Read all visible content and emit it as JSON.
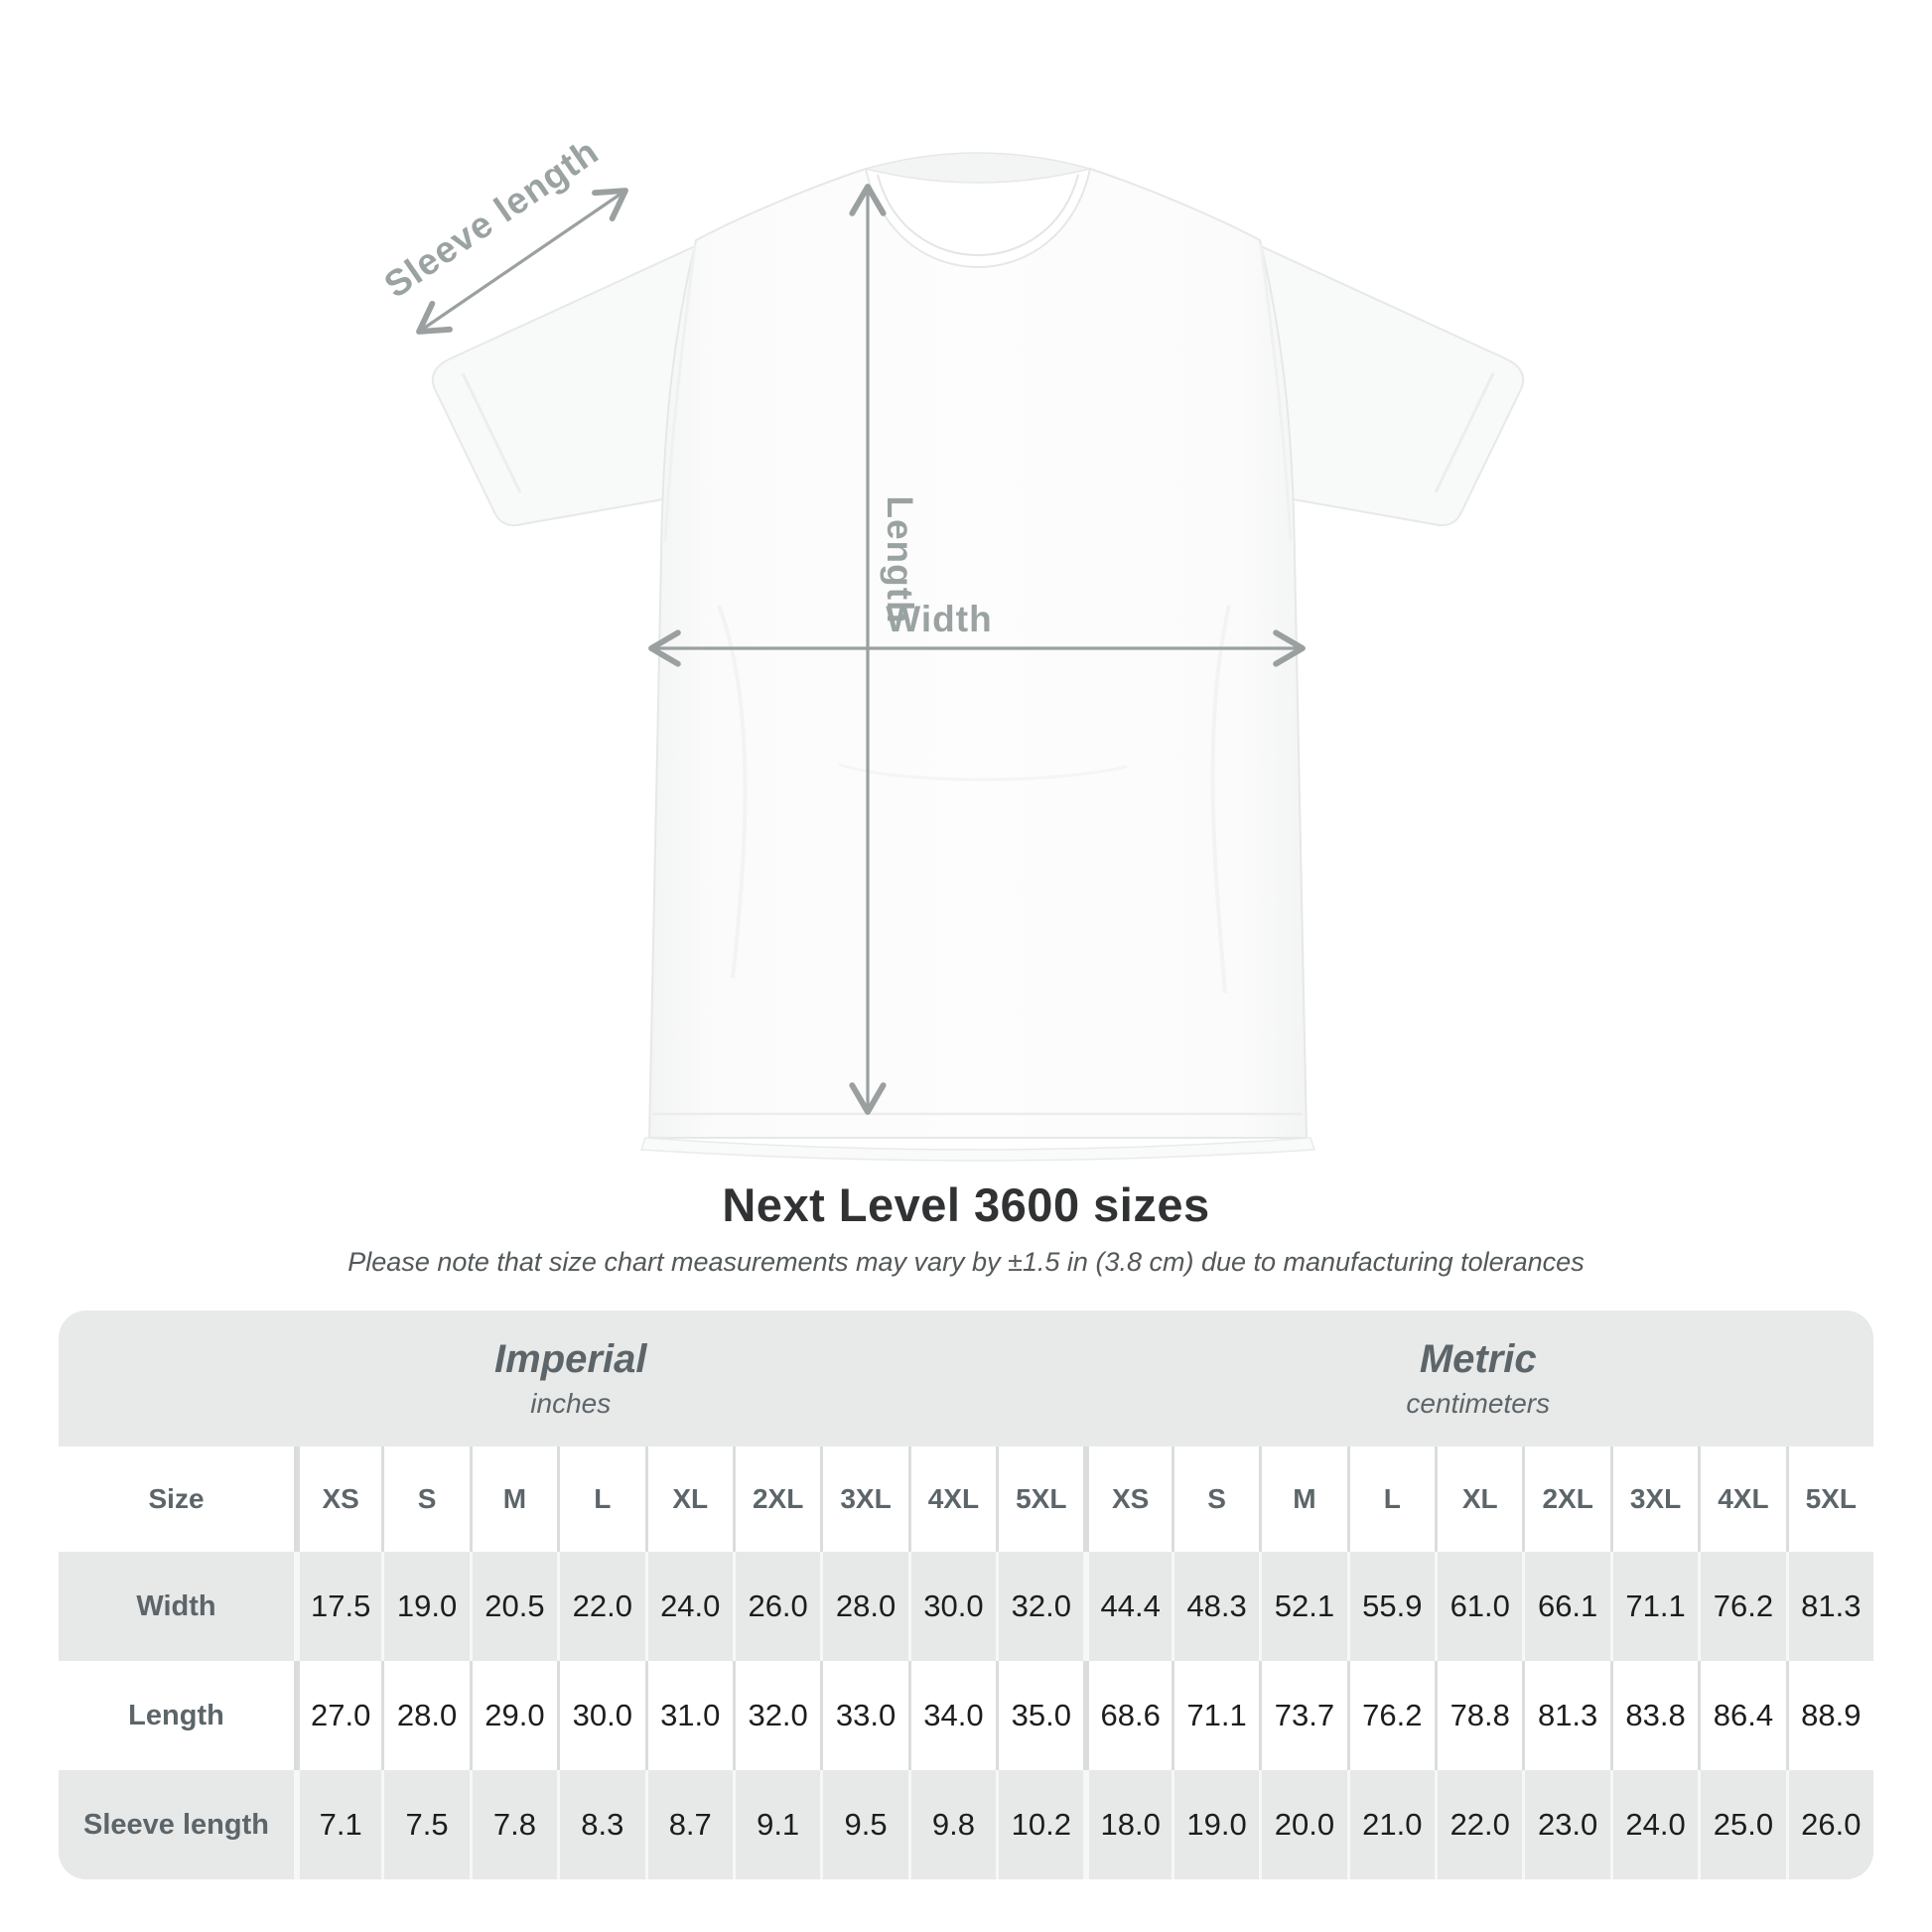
{
  "diagram": {
    "sleeve_label": "Sleeve length",
    "length_label": "Length",
    "width_label": "Width"
  },
  "title": "Next Level 3600 sizes",
  "subtitle": "Please note that size chart measurements may vary by ±1.5 in (3.8 cm) due to manufacturing tolerances",
  "table": {
    "corner_header": "Size",
    "groups": [
      {
        "label": "Imperial",
        "unit": "inches"
      },
      {
        "label": "Metric",
        "unit": "centimeters"
      }
    ],
    "sizes": [
      "XS",
      "S",
      "M",
      "L",
      "XL",
      "2XL",
      "3XL",
      "4XL",
      "5XL"
    ],
    "rows": [
      {
        "label": "Width",
        "values_in": [
          "17.5",
          "19.0",
          "20.5",
          "22.0",
          "24.0",
          "26.0",
          "28.0",
          "30.0",
          "32.0"
        ],
        "values_cm": [
          "44.4",
          "48.3",
          "52.1",
          "55.9",
          "61.0",
          "66.1",
          "71.1",
          "76.2",
          "81.3"
        ]
      },
      {
        "label": "Length",
        "values_in": [
          "27.0",
          "28.0",
          "29.0",
          "30.0",
          "31.0",
          "32.0",
          "33.0",
          "34.0",
          "35.0"
        ],
        "values_cm": [
          "68.6",
          "71.1",
          "73.7",
          "76.2",
          "78.8",
          "81.3",
          "83.8",
          "86.4",
          "88.9"
        ]
      },
      {
        "label": "Sleeve length",
        "values_in": [
          "7.1",
          "7.5",
          "7.8",
          "8.3",
          "8.7",
          "9.1",
          "9.5",
          "9.8",
          "10.2"
        ],
        "values_cm": [
          "18.0",
          "19.0",
          "20.0",
          "21.0",
          "22.0",
          "23.0",
          "24.0",
          "25.0",
          "26.0"
        ]
      }
    ]
  },
  "chart_data": {
    "type": "table",
    "title": "Next Level 3600 sizes",
    "note": "Please note that size chart measurements may vary by ±1.5 in (3.8 cm) due to manufacturing tolerances",
    "column_groups": [
      "Imperial (inches)",
      "Metric (centimeters)"
    ],
    "columns": [
      "Size",
      "XS",
      "S",
      "M",
      "L",
      "XL",
      "2XL",
      "3XL",
      "4XL",
      "5XL",
      "XS",
      "S",
      "M",
      "L",
      "XL",
      "2XL",
      "3XL",
      "4XL",
      "5XL"
    ],
    "rows": [
      [
        "Width",
        17.5,
        19.0,
        20.5,
        22.0,
        24.0,
        26.0,
        28.0,
        30.0,
        32.0,
        44.4,
        48.3,
        52.1,
        55.9,
        61.0,
        66.1,
        71.1,
        76.2,
        81.3
      ],
      [
        "Length",
        27.0,
        28.0,
        29.0,
        30.0,
        31.0,
        32.0,
        33.0,
        34.0,
        35.0,
        68.6,
        71.1,
        73.7,
        76.2,
        78.8,
        81.3,
        83.8,
        86.4,
        88.9
      ],
      [
        "Sleeve length",
        7.1,
        7.5,
        7.8,
        8.3,
        8.7,
        9.1,
        9.5,
        9.8,
        10.2,
        18.0,
        19.0,
        20.0,
        21.0,
        22.0,
        23.0,
        24.0,
        25.0,
        26.0
      ]
    ]
  },
  "colors": {
    "diagram_gray": "#9aa2a2",
    "arrow_gray": "#9aa0a0",
    "table_bg": "#e8e9e9",
    "row_alt": "#ffffff",
    "label_text": "#5c6569",
    "value_text": "#1d1d1d",
    "title_text": "#303234"
  }
}
